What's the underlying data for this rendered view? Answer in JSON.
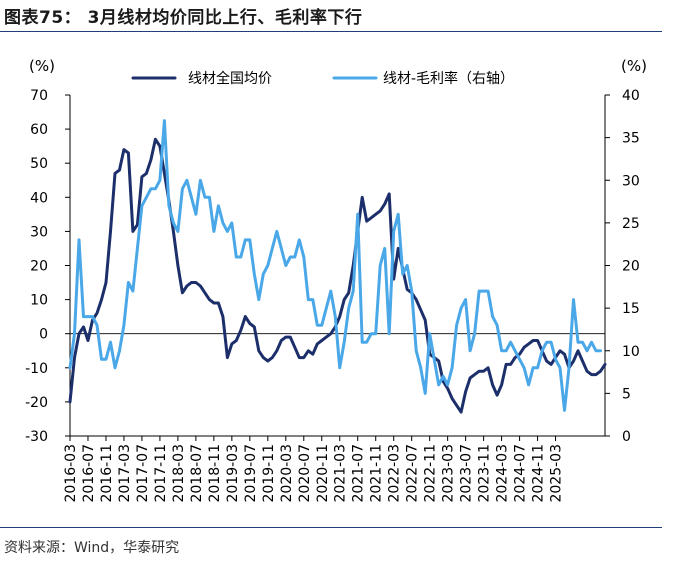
{
  "page": {
    "title": "图表75： 3月线材均价同比上行、毛利率下行",
    "source": "资料来源：Wind，华泰研究"
  },
  "chart_data": {
    "type": "line",
    "title": "图表75： 3月线材均价同比上行、毛利率下行",
    "x_tick_labels": [
      "2016-03",
      "2016-07",
      "2016-11",
      "2017-03",
      "2017-07",
      "2017-11",
      "2018-03",
      "2018-07",
      "2018-11",
      "2019-03",
      "2019-07",
      "2019-11",
      "2020-03",
      "2020-07",
      "2020-11",
      "2021-03",
      "2021-07",
      "2021-11",
      "2022-03",
      "2022-07",
      "2022-11",
      "2023-03",
      "2023-07",
      "2023-11",
      "2024-03",
      "2024-07",
      "2024-11",
      "2025-03"
    ],
    "x_start": "2016-03",
    "y_left": {
      "label": "(%)",
      "min": -30,
      "max": 70,
      "ticks": [
        -30,
        -20,
        -10,
        0,
        10,
        20,
        30,
        40,
        50,
        60,
        70
      ]
    },
    "y_right": {
      "label": "(%)",
      "min": 0,
      "max": 40,
      "ticks": [
        0,
        5,
        10,
        15,
        20,
        25,
        30,
        35,
        40
      ]
    },
    "legend_position": "top",
    "grid": false,
    "series": [
      {
        "name": "线材全国均价",
        "axis": "left",
        "color": "#1c2f6b",
        "values": [
          -20,
          -7,
          0,
          2,
          -2,
          4,
          6,
          10,
          15,
          30,
          47,
          48,
          54,
          53,
          30,
          32,
          46,
          47,
          51,
          57,
          55,
          47,
          39,
          30,
          20,
          12,
          14,
          15,
          15,
          14,
          12,
          10,
          9,
          9,
          5,
          -7,
          -3,
          -2,
          1,
          5,
          3,
          2,
          -5,
          -7,
          -8,
          -7,
          -5,
          -2,
          -1,
          -1,
          -4,
          -7,
          -7,
          -5,
          -6,
          -3,
          -2,
          -1,
          0,
          2,
          5,
          10,
          12,
          20,
          30,
          40,
          33,
          34,
          35,
          36,
          38,
          41,
          16,
          25,
          19,
          13,
          12,
          10,
          7,
          4,
          -6,
          -7,
          -8,
          -14,
          -16,
          -19,
          -21,
          -23,
          -17,
          -13,
          -12,
          -11,
          -11,
          -10,
          -15,
          -18,
          -15,
          -9,
          -9,
          -7,
          -6,
          -4,
          -3,
          -2,
          -2,
          -5,
          -8,
          -9,
          -7,
          -5,
          -6,
          -10,
          -8,
          -5,
          -8,
          -11,
          -12,
          -12,
          -11,
          -9
        ]
      },
      {
        "name": "线材-毛利率（右轴）",
        "axis": "right",
        "color": "#4aa8e8",
        "values": [
          8,
          12,
          23,
          14,
          14,
          14,
          13,
          9,
          9,
          11,
          8,
          10,
          13,
          18,
          17,
          22,
          27,
          28,
          29,
          29,
          30,
          37,
          27,
          25,
          24,
          29,
          30,
          28,
          26,
          30,
          28,
          28,
          24,
          27,
          25,
          24,
          25,
          21,
          21,
          23,
          23,
          19,
          16,
          19,
          20,
          22,
          24,
          22,
          20,
          21,
          21,
          23,
          21,
          16,
          16,
          13,
          13,
          15,
          17,
          14,
          8,
          11,
          15,
          17,
          26,
          11,
          11,
          12,
          12,
          20,
          22,
          12,
          24,
          26,
          19,
          20,
          17,
          10,
          8,
          5,
          12,
          9,
          6,
          7,
          6,
          8,
          13,
          15,
          16,
          10,
          12,
          17,
          17,
          17,
          14,
          13,
          10,
          10,
          11,
          10,
          9,
          8,
          6,
          8,
          8,
          10,
          11,
          11,
          9,
          8,
          3,
          8,
          16,
          11,
          11,
          10,
          11,
          10,
          10
        ]
      }
    ]
  }
}
